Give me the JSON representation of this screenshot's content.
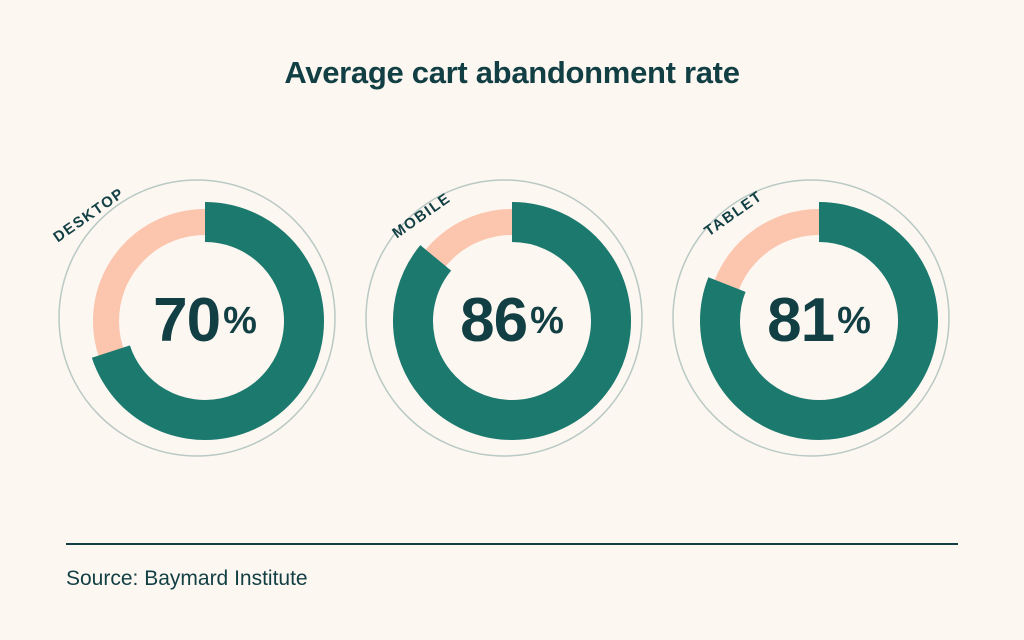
{
  "title": "Average cart abandonment rate",
  "source": "Source: Baymard Institute",
  "unit": "%",
  "colors": {
    "background": "#fdf7f2",
    "teal": "#1b796e",
    "pink": "#fbc5ae",
    "text": "#113f44",
    "halo": "#b9c9c4"
  },
  "chart_data": {
    "type": "pie",
    "subtype": "donut-multiple",
    "title": "Average cart abandonment rate",
    "unit": "%",
    "source": "Baymard Institute",
    "legend_position": "labels-rotated-top-left",
    "items": [
      {
        "label": "DESKTOP",
        "value": 70,
        "remainder": 30
      },
      {
        "label": "MOBILE",
        "value": 86,
        "remainder": 14
      },
      {
        "label": "TABLET",
        "value": 81,
        "remainder": 19
      }
    ],
    "value_color": "#1b796e",
    "remainder_color": "#fbc5ae"
  }
}
